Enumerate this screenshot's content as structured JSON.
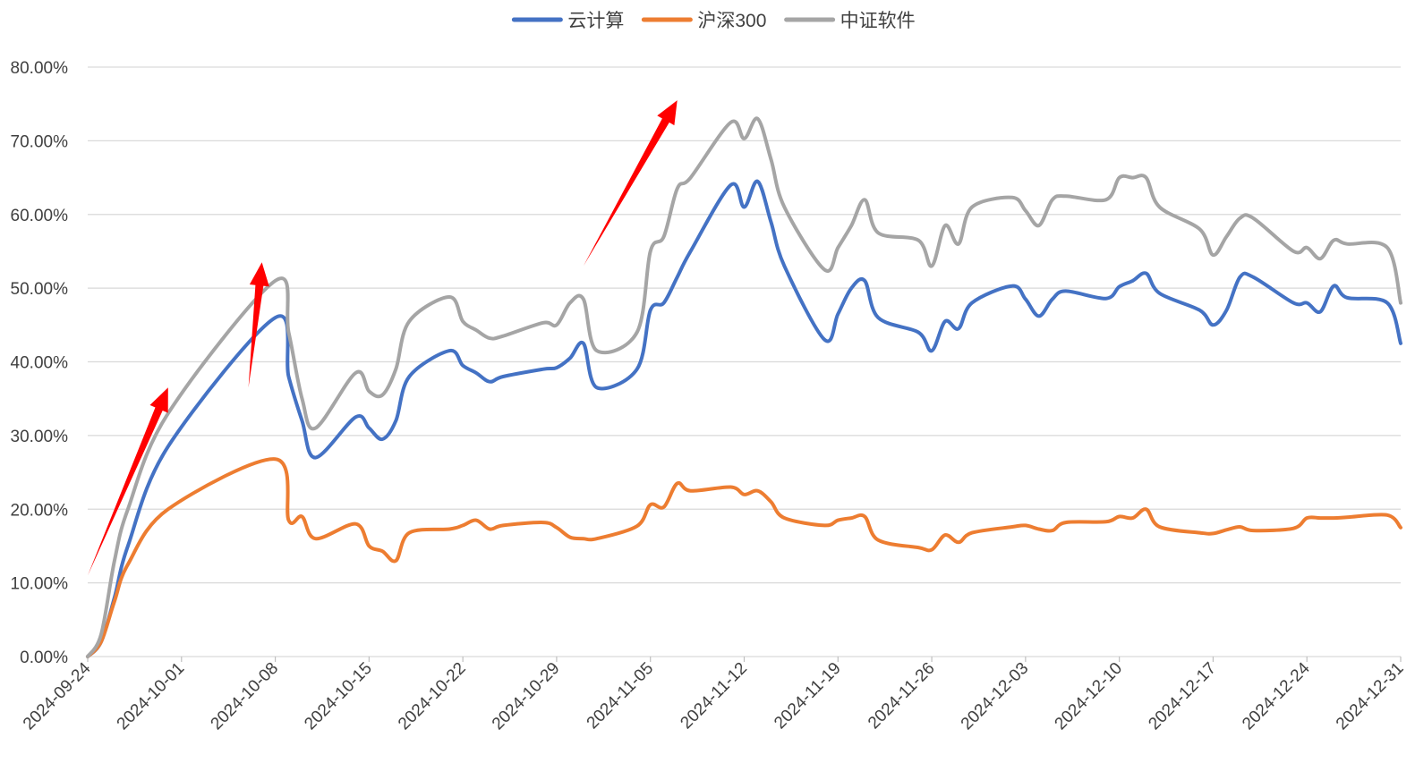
{
  "chart_data": {
    "type": "line",
    "ylim": [
      0,
      80
    ],
    "y_ticks": [
      "0.00%",
      "10.00%",
      "20.00%",
      "30.00%",
      "40.00%",
      "50.00%",
      "60.00%",
      "70.00%",
      "80.00%"
    ],
    "x_ticks": [
      "2024-09-24",
      "2024-10-01",
      "2024-10-08",
      "2024-10-15",
      "2024-10-22",
      "2024-10-29",
      "2024-11-05",
      "2024-11-12",
      "2024-11-19",
      "2024-11-26",
      "2024-12-03",
      "2024-12-10",
      "2024-12-17",
      "2024-12-24",
      "2024-12-31"
    ],
    "grid": true,
    "legend_position": "top",
    "series": [
      {
        "name": "云计算",
        "color": "#4472C4",
        "points": [
          [
            "2024-09-24",
            0
          ],
          [
            "2024-09-25",
            2
          ],
          [
            "2024-09-26",
            8
          ],
          [
            "2024-09-27",
            15
          ],
          [
            "2024-09-30",
            28.5
          ],
          [
            "2024-10-08",
            46
          ],
          [
            "2024-10-09",
            38
          ],
          [
            "2024-10-10",
            32
          ],
          [
            "2024-10-11",
            27
          ],
          [
            "2024-10-14",
            32.5
          ],
          [
            "2024-10-15",
            31
          ],
          [
            "2024-10-16",
            29.5
          ],
          [
            "2024-10-17",
            32
          ],
          [
            "2024-10-18",
            38
          ],
          [
            "2024-10-21",
            41.5
          ],
          [
            "2024-10-22",
            39.5
          ],
          [
            "2024-10-23",
            38.5
          ],
          [
            "2024-10-24",
            37.3
          ],
          [
            "2024-10-25",
            38
          ],
          [
            "2024-10-28",
            39
          ],
          [
            "2024-10-29",
            39.2
          ],
          [
            "2024-10-30",
            40.5
          ],
          [
            "2024-10-31",
            42.5
          ],
          [
            "2024-11-01",
            36.5
          ],
          [
            "2024-11-04",
            39
          ],
          [
            "2024-11-05",
            47
          ],
          [
            "2024-11-06",
            48
          ],
          [
            "2024-11-07",
            51.5
          ],
          [
            "2024-11-08",
            55
          ],
          [
            "2024-11-11",
            64
          ],
          [
            "2024-11-12",
            61
          ],
          [
            "2024-11-13",
            64.5
          ],
          [
            "2024-11-14",
            59
          ],
          [
            "2024-11-15",
            53
          ],
          [
            "2024-11-18",
            43
          ],
          [
            "2024-11-19",
            46.5
          ],
          [
            "2024-11-20",
            50
          ],
          [
            "2024-11-21",
            51
          ],
          [
            "2024-11-22",
            46
          ],
          [
            "2024-11-25",
            44
          ],
          [
            "2024-11-26",
            41.5
          ],
          [
            "2024-11-27",
            45.5
          ],
          [
            "2024-11-28",
            44.5
          ],
          [
            "2024-11-29",
            48
          ],
          [
            "2024-12-02",
            50.3
          ],
          [
            "2024-12-03",
            48.5
          ],
          [
            "2024-12-04",
            46.2
          ],
          [
            "2024-12-05",
            48.5
          ],
          [
            "2024-12-06",
            49.6
          ],
          [
            "2024-12-09",
            48.6
          ],
          [
            "2024-12-10",
            50.2
          ],
          [
            "2024-12-11",
            51
          ],
          [
            "2024-12-12",
            52
          ],
          [
            "2024-12-13",
            49.3
          ],
          [
            "2024-12-16",
            47
          ],
          [
            "2024-12-17",
            45
          ],
          [
            "2024-12-18",
            47
          ],
          [
            "2024-12-19",
            51.5
          ],
          [
            "2024-12-20",
            51.5
          ],
          [
            "2024-12-23",
            48
          ],
          [
            "2024-12-24",
            48
          ],
          [
            "2024-12-25",
            46.8
          ],
          [
            "2024-12-26",
            50.3
          ],
          [
            "2024-12-27",
            48.7
          ],
          [
            "2024-12-30",
            48
          ],
          [
            "2024-12-31",
            42.5
          ]
        ]
      },
      {
        "name": "沪深300",
        "color": "#ED7D31",
        "points": [
          [
            "2024-09-24",
            0
          ],
          [
            "2024-09-25",
            2
          ],
          [
            "2024-09-26",
            7.5
          ],
          [
            "2024-09-27",
            12.5
          ],
          [
            "2024-09-30",
            20
          ],
          [
            "2024-10-08",
            26.8
          ],
          [
            "2024-10-09",
            18.5
          ],
          [
            "2024-10-10",
            19
          ],
          [
            "2024-10-11",
            16
          ],
          [
            "2024-10-14",
            18
          ],
          [
            "2024-10-15",
            15
          ],
          [
            "2024-10-16",
            14.3
          ],
          [
            "2024-10-17",
            13
          ],
          [
            "2024-10-18",
            16.8
          ],
          [
            "2024-10-21",
            17.3
          ],
          [
            "2024-10-22",
            17.8
          ],
          [
            "2024-10-23",
            18.5
          ],
          [
            "2024-10-24",
            17.3
          ],
          [
            "2024-10-25",
            17.8
          ],
          [
            "2024-10-28",
            18.2
          ],
          [
            "2024-10-29",
            17.5
          ],
          [
            "2024-10-30",
            16.2
          ],
          [
            "2024-10-31",
            16
          ],
          [
            "2024-11-01",
            16
          ],
          [
            "2024-11-04",
            17.7
          ],
          [
            "2024-11-05",
            20.6
          ],
          [
            "2024-11-06",
            20.3
          ],
          [
            "2024-11-07",
            23.5
          ],
          [
            "2024-11-08",
            22.5
          ],
          [
            "2024-11-11",
            23
          ],
          [
            "2024-11-12",
            22
          ],
          [
            "2024-11-13",
            22.5
          ],
          [
            "2024-11-14",
            21
          ],
          [
            "2024-11-15",
            18.8
          ],
          [
            "2024-11-18",
            17.8
          ],
          [
            "2024-11-19",
            18.5
          ],
          [
            "2024-11-20",
            18.8
          ],
          [
            "2024-11-21",
            19
          ],
          [
            "2024-11-22",
            15.8
          ],
          [
            "2024-11-25",
            14.8
          ],
          [
            "2024-11-26",
            14.5
          ],
          [
            "2024-11-27",
            16.5
          ],
          [
            "2024-11-28",
            15.5
          ],
          [
            "2024-11-29",
            16.8
          ],
          [
            "2024-12-02",
            17.6
          ],
          [
            "2024-12-03",
            17.8
          ],
          [
            "2024-12-04",
            17.3
          ],
          [
            "2024-12-05",
            17.1
          ],
          [
            "2024-12-06",
            18.2
          ],
          [
            "2024-12-09",
            18.3
          ],
          [
            "2024-12-10",
            19
          ],
          [
            "2024-12-11",
            18.8
          ],
          [
            "2024-12-12",
            20
          ],
          [
            "2024-12-13",
            17.6
          ],
          [
            "2024-12-16",
            16.8
          ],
          [
            "2024-12-17",
            16.7
          ],
          [
            "2024-12-18",
            17.2
          ],
          [
            "2024-12-19",
            17.6
          ],
          [
            "2024-12-20",
            17.1
          ],
          [
            "2024-12-23",
            17.4
          ],
          [
            "2024-12-24",
            18.8
          ],
          [
            "2024-12-25",
            18.8
          ],
          [
            "2024-12-26",
            18.8
          ],
          [
            "2024-12-27",
            18.9
          ],
          [
            "2024-12-30",
            19.2
          ],
          [
            "2024-12-31",
            17.5
          ]
        ]
      },
      {
        "name": "中证软件",
        "color": "#A5A5A5",
        "points": [
          [
            "2024-09-24",
            0
          ],
          [
            "2024-09-25",
            3
          ],
          [
            "2024-09-26",
            13
          ],
          [
            "2024-09-27",
            20
          ],
          [
            "2024-09-30",
            33
          ],
          [
            "2024-10-08",
            51
          ],
          [
            "2024-10-09",
            44
          ],
          [
            "2024-10-10",
            35
          ],
          [
            "2024-10-11",
            31
          ],
          [
            "2024-10-14",
            38.5
          ],
          [
            "2024-10-15",
            36
          ],
          [
            "2024-10-16",
            35.5
          ],
          [
            "2024-10-17",
            39
          ],
          [
            "2024-10-18",
            45.5
          ],
          [
            "2024-10-21",
            48.8
          ],
          [
            "2024-10-22",
            45.5
          ],
          [
            "2024-10-23",
            44.3
          ],
          [
            "2024-10-24",
            43.2
          ],
          [
            "2024-10-25",
            43.5
          ],
          [
            "2024-10-28",
            45.3
          ],
          [
            "2024-10-29",
            45
          ],
          [
            "2024-10-30",
            48
          ],
          [
            "2024-10-31",
            48.5
          ],
          [
            "2024-11-01",
            41.5
          ],
          [
            "2024-11-04",
            44
          ],
          [
            "2024-11-05",
            55
          ],
          [
            "2024-11-06",
            57
          ],
          [
            "2024-11-07",
            63.5
          ],
          [
            "2024-11-08",
            65
          ],
          [
            "2024-11-11",
            72.5
          ],
          [
            "2024-11-12",
            70.3
          ],
          [
            "2024-11-13",
            73
          ],
          [
            "2024-11-14",
            67.5
          ],
          [
            "2024-11-15",
            61
          ],
          [
            "2024-11-18",
            52.5
          ],
          [
            "2024-11-19",
            55.5
          ],
          [
            "2024-11-20",
            58.5
          ],
          [
            "2024-11-21",
            62
          ],
          [
            "2024-11-22",
            57.5
          ],
          [
            "2024-11-25",
            56.5
          ],
          [
            "2024-11-26",
            53
          ],
          [
            "2024-11-27",
            58.5
          ],
          [
            "2024-11-28",
            56
          ],
          [
            "2024-11-29",
            61
          ],
          [
            "2024-12-02",
            62.3
          ],
          [
            "2024-12-03",
            60.5
          ],
          [
            "2024-12-04",
            58.5
          ],
          [
            "2024-12-05",
            62
          ],
          [
            "2024-12-06",
            62.5
          ],
          [
            "2024-12-09",
            62
          ],
          [
            "2024-12-10",
            65
          ],
          [
            "2024-12-11",
            65
          ],
          [
            "2024-12-12",
            65
          ],
          [
            "2024-12-13",
            61
          ],
          [
            "2024-12-16",
            58
          ],
          [
            "2024-12-17",
            54.5
          ],
          [
            "2024-12-18",
            57
          ],
          [
            "2024-12-19",
            59.5
          ],
          [
            "2024-12-20",
            59.5
          ],
          [
            "2024-12-23",
            55
          ],
          [
            "2024-12-24",
            55.5
          ],
          [
            "2024-12-25",
            54
          ],
          [
            "2024-12-26",
            56.5
          ],
          [
            "2024-12-27",
            56
          ],
          [
            "2024-12-30",
            55.5
          ],
          [
            "2024-12-31",
            48
          ]
        ]
      }
    ],
    "annotations": [
      {
        "type": "arrow",
        "color": "#FF0000",
        "from": [
          "2024-09-24",
          11
        ],
        "to": [
          "2024-09-30",
          36.5
        ]
      },
      {
        "type": "arrow",
        "color": "#FF0000",
        "from": [
          "2024-10-06",
          36.5
        ],
        "to": [
          "2024-10-07",
          53.5
        ]
      },
      {
        "type": "arrow",
        "color": "#FF0000",
        "from": [
          "2024-10-31",
          53
        ],
        "to": [
          "2024-11-07",
          75.5
        ]
      }
    ]
  }
}
